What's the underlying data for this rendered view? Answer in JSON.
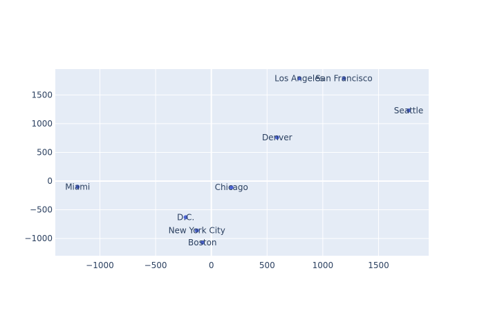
{
  "chart_data": {
    "type": "scatter",
    "title": "",
    "xlabel": "",
    "ylabel": "",
    "xlim": [
      -1400,
      1950
    ],
    "ylim": [
      -1300,
      1950
    ],
    "x_ticks": [
      -1000,
      -500,
      0,
      500,
      1000,
      1500
    ],
    "y_ticks": [
      -1000,
      -500,
      0,
      500,
      1000,
      1500
    ],
    "x_tick_labels": [
      "−1000",
      "−500",
      "0",
      "500",
      "1000",
      "1500"
    ],
    "y_tick_labels": [
      "−1000",
      "−500",
      "0",
      "500",
      "1000",
      "1500"
    ],
    "grid": true,
    "legend": false,
    "colors": {
      "plot_bg": "#e5ecf6",
      "grid": "#ffffff",
      "marker": "#4c63d2",
      "text": "#2a3f5f"
    },
    "points": [
      {
        "label": "Los Angeles",
        "x": 790,
        "y": 1790
      },
      {
        "label": "San Francisco",
        "x": 1190,
        "y": 1790
      },
      {
        "label": "Seattle",
        "x": 1770,
        "y": 1230
      },
      {
        "label": "Denver",
        "x": 590,
        "y": 760
      },
      {
        "label": "Miami",
        "x": -1200,
        "y": -100
      },
      {
        "label": "Chicago",
        "x": 180,
        "y": -110
      },
      {
        "label": "D.C.",
        "x": -230,
        "y": -630
      },
      {
        "label": "New York City",
        "x": -130,
        "y": -860
      },
      {
        "label": "Boston",
        "x": -80,
        "y": -1070
      }
    ]
  }
}
